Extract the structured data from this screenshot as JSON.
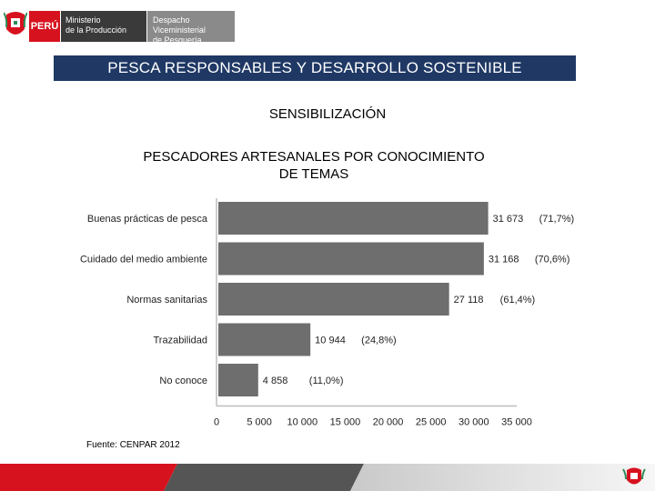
{
  "header": {
    "country": "PERÚ",
    "ministry_line1": "Ministerio",
    "ministry_line2": "de la Producción",
    "vice_line1": "Despacho Viceministerial",
    "vice_line2": "de Pesquería",
    "logo_icon": "coat-of-arms-icon"
  },
  "banner": {
    "title": "PESCA RESPONSABLES Y DESARROLLO SOSTENIBLE"
  },
  "subtitle": "SENSIBILIZACIÓN",
  "chart_title_line1": "PESCADORES ARTESANALES POR CONOCIMIENTO",
  "chart_title_line2": "DE TEMAS",
  "source": "Fuente: CENPAR 2012",
  "colors": {
    "banner": "#1f3864",
    "bar": "#6e6e6e",
    "red": "#d7121f"
  },
  "chart_data": {
    "type": "bar",
    "orientation": "horizontal",
    "categories": [
      "Buenas prácticas de pesca",
      "Cuidado del medio ambiente",
      "Normas sanitarias",
      "Trazabilidad",
      "No conoce"
    ],
    "values": [
      31673,
      31168,
      27118,
      10944,
      4858
    ],
    "value_labels": [
      "31 673",
      "31 168",
      "27 118",
      "10 944",
      "4 858"
    ],
    "percent_labels": [
      "(71,7%)",
      "(70,6%)",
      "(61,4%)",
      "(24,8%)",
      "(11,0%)"
    ],
    "xlim": [
      0,
      35000
    ],
    "x_ticks": [
      0,
      5000,
      10000,
      15000,
      20000,
      25000,
      30000,
      35000
    ],
    "x_tick_labels": [
      "0",
      "5 000",
      "10 000",
      "15 000",
      "20 000",
      "25 000",
      "30 000",
      "35 000"
    ],
    "grid": false,
    "title": "PESCADORES ARTESANALES POR CONOCIMIENTO DE TEMAS"
  }
}
